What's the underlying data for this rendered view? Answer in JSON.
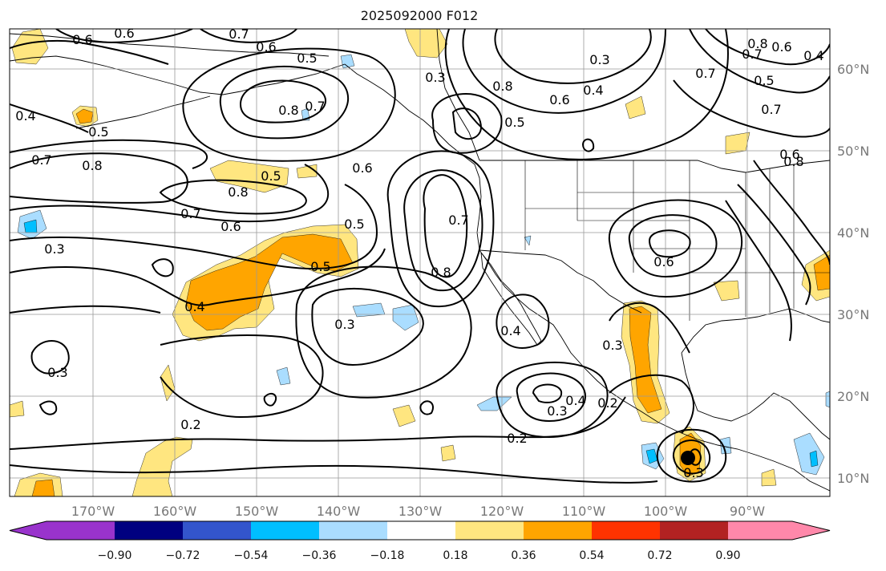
{
  "title": "2025092000 F012",
  "lon_ticks": [
    "170°W",
    "160°W",
    "150°W",
    "140°W",
    "130°W",
    "120°W",
    "110°W",
    "100°W",
    "90°W"
  ],
  "lat_ticks": [
    "60°N",
    "50°N",
    "40°N",
    "30°N",
    "20°N",
    "10°N"
  ],
  "colorbar": {
    "tick_labels": [
      "−0.90",
      "−0.72",
      "−0.54",
      "−0.36",
      "−0.18",
      "0.18",
      "0.36",
      "0.54",
      "0.72",
      "0.90"
    ],
    "colors": [
      "#9933cc",
      "#000080",
      "#3355cc",
      "#00bfff",
      "#aaddff",
      "#ffffff",
      "#ffe680",
      "#ffa500",
      "#ff3300",
      "#b22222",
      "#ff88aa"
    ]
  },
  "fill_colors": {
    "pos_light": "#ffe680",
    "pos_mid": "#ffa500",
    "neg_light": "#aaddff",
    "neg_mid": "#00bfff"
  },
  "contour_labels": [
    "0.6",
    "0.6",
    "0.7",
    "0.6",
    "0.5",
    "0.8",
    "0.7",
    "0.4",
    "0.5",
    "0.7",
    "0.8",
    "0.5",
    "0.8",
    "0.7",
    "0.6",
    "0.3",
    "0.4",
    "0.5",
    "0.5",
    "0.3",
    "0.6",
    "0.7",
    "0.8",
    "0.3",
    "0.4",
    "0.3",
    "0.4",
    "0.2",
    "0.2",
    "0.3",
    "0.2",
    "0.3",
    "0.3",
    "0.4",
    "0.8",
    "0.8",
    "0.7",
    "0.3",
    "0.4",
    "0.6",
    "0.5",
    "0.6",
    "0.5",
    "0.7",
    "0.8",
    "0.6",
    "0.7",
    "0.6"
  ]
}
